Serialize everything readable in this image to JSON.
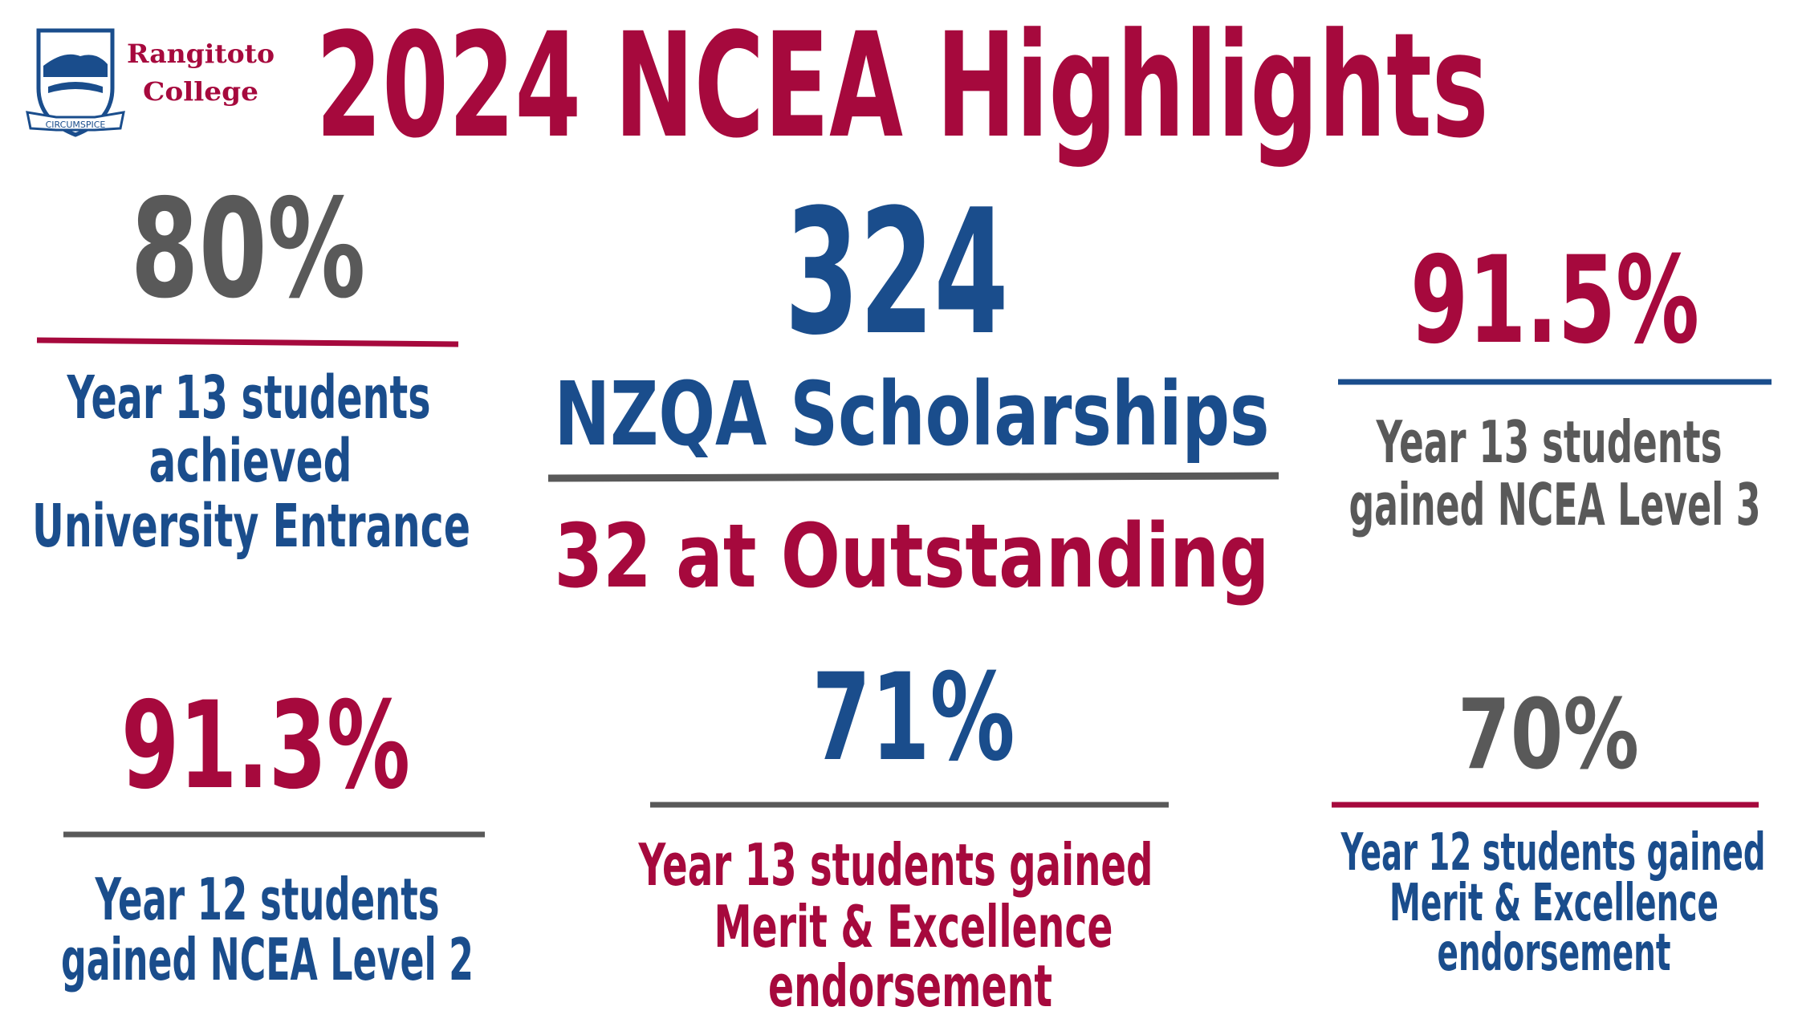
{
  "header": {
    "title": "2024 NCEA Highlights",
    "logo": {
      "name_line1": "Rangitoto",
      "name_line2": "College",
      "motto": "CIRCUMSPICE"
    }
  },
  "featured": {
    "value": "324",
    "label": "NZQA Scholarships",
    "sub": "32 at Outstanding"
  },
  "stats": [
    {
      "value": "80%",
      "description": [
        "Year 13 students",
        "achieved",
        "University Entrance"
      ]
    },
    {
      "value": "91.5%",
      "description": [
        "Year 13 students",
        "gained NCEA Level 3"
      ]
    },
    {
      "value": "91.3%",
      "description": [
        "Year 12 students",
        "gained NCEA Level 2"
      ]
    },
    {
      "value": "71%",
      "description": [
        "Year 13 students gained",
        "Merit & Excellence",
        "endorsement"
      ]
    },
    {
      "value": "70%",
      "description": [
        "Year 12 students gained",
        "Merit & Excellence",
        "endorsement"
      ]
    }
  ]
}
